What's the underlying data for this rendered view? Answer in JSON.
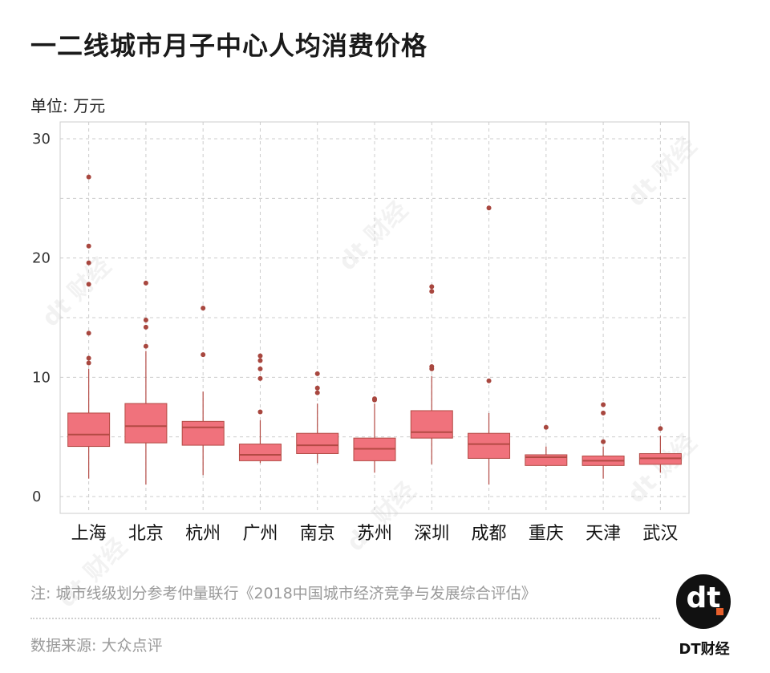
{
  "title": "一二线城市月子中心人均消费价格",
  "unit": "单位: 万元",
  "note": "注: 城市线级划分参考仲量联行《2018中国城市经济竞争与发展综合评估》",
  "source": "数据来源: 大众点评",
  "brand": "DT财经",
  "logo_mark": "dt",
  "watermark": "dt 财经",
  "colors": {
    "box_fill": "#f0727c",
    "box_stroke": "#b34a44",
    "outlier": "#a8473f",
    "grid": "#cccccc",
    "accent": "#e8602c"
  },
  "chart_data": {
    "type": "boxplot",
    "title": "一二线城市月子中心人均消费价格",
    "ylabel": "单位: 万元",
    "ylim": [
      0,
      30
    ],
    "yticks": [
      0,
      10,
      20,
      30
    ],
    "grid": true,
    "categories": [
      "上海",
      "北京",
      "杭州",
      "广州",
      "南京",
      "苏州",
      "深圳",
      "成都",
      "重庆",
      "天津",
      "武汉"
    ],
    "boxes": [
      {
        "min": 1.5,
        "q1": 4.2,
        "median": 5.2,
        "q3": 7.0,
        "max": 10.7,
        "outliers": [
          26.8,
          21.0,
          19.6,
          17.8,
          13.7,
          11.6,
          11.2
        ]
      },
      {
        "min": 1.0,
        "q1": 4.5,
        "median": 5.9,
        "q3": 7.8,
        "max": 12.2,
        "outliers": [
          17.9,
          14.8,
          14.2,
          12.6
        ]
      },
      {
        "min": 1.8,
        "q1": 4.3,
        "median": 5.8,
        "q3": 6.3,
        "max": 8.8,
        "outliers": [
          15.8,
          11.9
        ]
      },
      {
        "min": 2.8,
        "q1": 3.0,
        "median": 3.5,
        "q3": 4.4,
        "max": 6.4,
        "outliers": [
          11.8,
          11.4,
          10.7,
          9.9,
          7.1
        ]
      },
      {
        "min": 2.8,
        "q1": 3.6,
        "median": 4.3,
        "q3": 5.3,
        "max": 7.8,
        "outliers": [
          10.3,
          9.1,
          8.7
        ]
      },
      {
        "min": 2.0,
        "q1": 3.0,
        "median": 4.0,
        "q3": 4.9,
        "max": 7.8,
        "outliers": [
          8.2,
          8.1
        ]
      },
      {
        "min": 2.7,
        "q1": 4.9,
        "median": 5.4,
        "q3": 7.2,
        "max": 10.1,
        "outliers": [
          17.6,
          17.2,
          10.9,
          10.7
        ]
      },
      {
        "min": 1.0,
        "q1": 3.2,
        "median": 4.4,
        "q3": 5.3,
        "max": 7.0,
        "outliers": [
          24.2,
          9.7
        ]
      },
      {
        "min": 2.5,
        "q1": 2.6,
        "median": 3.3,
        "q3": 3.5,
        "max": 4.2,
        "outliers": [
          5.8
        ]
      },
      {
        "min": 1.5,
        "q1": 2.6,
        "median": 3.0,
        "q3": 3.4,
        "max": 4.2,
        "outliers": [
          7.7,
          7.0,
          4.6
        ]
      },
      {
        "min": 2.0,
        "q1": 2.7,
        "median": 3.2,
        "q3": 3.6,
        "max": 5.1,
        "outliers": [
          5.7
        ]
      }
    ]
  }
}
